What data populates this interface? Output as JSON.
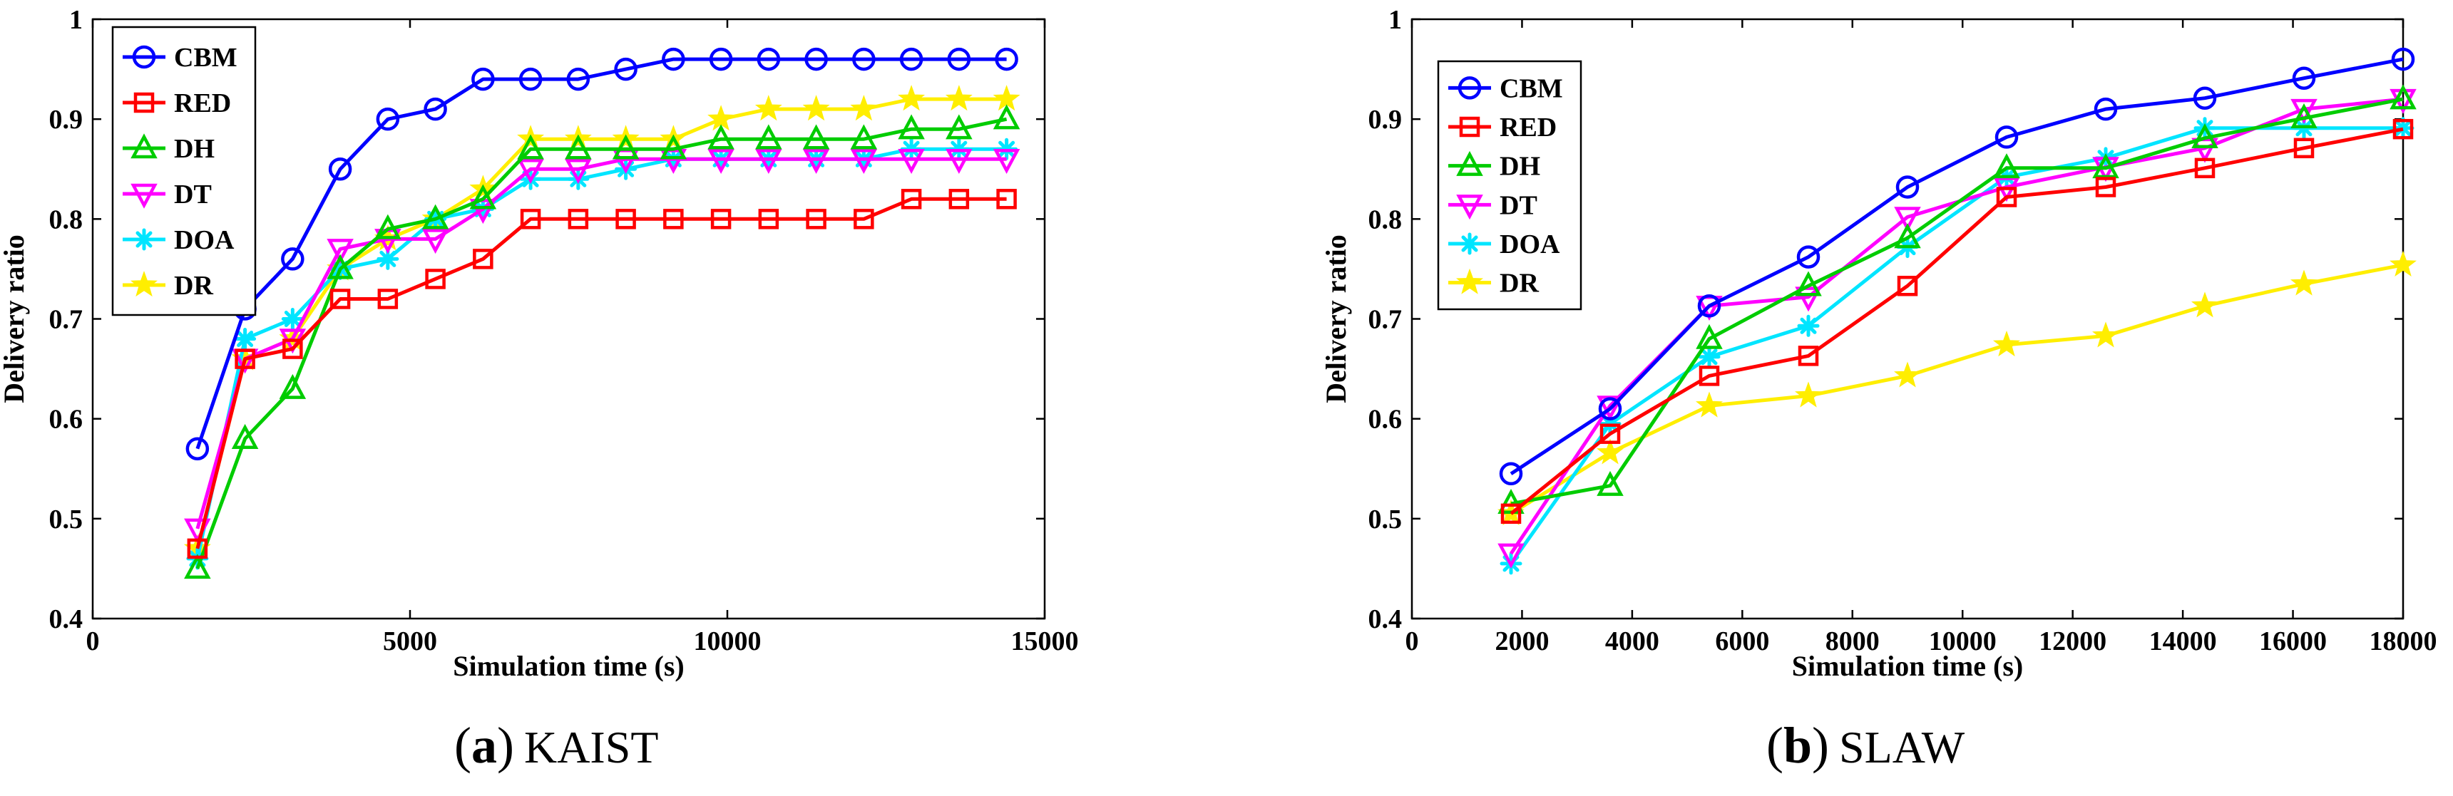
{
  "chart_data": [
    {
      "type": "line",
      "caption_letter": "a",
      "caption_text": "KAIST",
      "xlabel": "Simulation time (s)",
      "ylabel": "Delivery ratio",
      "xlim": [
        0,
        15000
      ],
      "ylim": [
        0.4,
        1.0
      ],
      "xticks": [
        0,
        5000,
        10000,
        15000
      ],
      "xtick_labels": [
        "0",
        "5000",
        "10000",
        "15000"
      ],
      "yticks": [
        0.4,
        0.5,
        0.6,
        0.7,
        0.8,
        0.9,
        1.0
      ],
      "ytick_labels": [
        "0.4",
        "0.5",
        "0.6",
        "0.7",
        "0.8",
        "0.9",
        "1"
      ],
      "legend_position": "top-left",
      "x": [
        1650,
        2400,
        3150,
        3900,
        4650,
        5400,
        6150,
        6900,
        7650,
        8400,
        9150,
        9900,
        10650,
        11400,
        12150,
        12900,
        13650,
        14400
      ],
      "series": [
        {
          "name": "CBM",
          "color": "#0000ff",
          "marker": "circle",
          "values": [
            0.57,
            0.71,
            0.76,
            0.85,
            0.9,
            0.91,
            0.94,
            0.94,
            0.94,
            0.95,
            0.96,
            0.96,
            0.96,
            0.96,
            0.96,
            0.96,
            0.96,
            0.96
          ]
        },
        {
          "name": "RED",
          "color": "#ff0000",
          "marker": "square",
          "values": [
            0.47,
            0.66,
            0.67,
            0.72,
            0.72,
            0.74,
            0.76,
            0.8,
            0.8,
            0.8,
            0.8,
            0.8,
            0.8,
            0.8,
            0.8,
            0.82,
            0.82,
            0.82
          ]
        },
        {
          "name": "DH",
          "color": "#00cc00",
          "marker": "triangle-up",
          "values": [
            0.45,
            0.58,
            0.63,
            0.75,
            0.79,
            0.8,
            0.82,
            0.87,
            0.87,
            0.87,
            0.87,
            0.88,
            0.88,
            0.88,
            0.88,
            0.89,
            0.89,
            0.9
          ]
        },
        {
          "name": "DT",
          "color": "#ff00ff",
          "marker": "triangle-down",
          "values": [
            0.49,
            0.66,
            0.68,
            0.77,
            0.78,
            0.78,
            0.81,
            0.85,
            0.85,
            0.86,
            0.86,
            0.86,
            0.86,
            0.86,
            0.86,
            0.86,
            0.86,
            0.86
          ]
        },
        {
          "name": "DOA",
          "color": "#00e5ff",
          "marker": "asterisk",
          "values": [
            0.46,
            0.68,
            0.7,
            0.75,
            0.76,
            0.8,
            0.81,
            0.84,
            0.84,
            0.85,
            0.86,
            0.86,
            0.86,
            0.86,
            0.86,
            0.87,
            0.87,
            0.87
          ]
        },
        {
          "name": "DR",
          "color": "#ffee00",
          "marker": "star",
          "values": [
            0.47,
            0.66,
            0.68,
            0.75,
            0.78,
            0.8,
            0.83,
            0.88,
            0.88,
            0.88,
            0.88,
            0.9,
            0.91,
            0.91,
            0.91,
            0.92,
            0.92,
            0.92
          ]
        }
      ]
    },
    {
      "type": "line",
      "caption_letter": "b",
      "caption_text": "SLAW",
      "xlabel": "Simulation time (s)",
      "ylabel": "Delivery ratio",
      "xlim": [
        0,
        18000
      ],
      "ylim": [
        0.4,
        1.0
      ],
      "xticks": [
        0,
        2000,
        4000,
        6000,
        8000,
        10000,
        12000,
        14000,
        16000,
        18000
      ],
      "xtick_labels": [
        "0",
        "2000",
        "4000",
        "6000",
        "8000",
        "10000",
        "12000",
        "14000",
        "16000",
        "18000"
      ],
      "yticks": [
        0.4,
        0.5,
        0.6,
        0.7,
        0.8,
        0.9,
        1.0
      ],
      "ytick_labels": [
        "0.4",
        "0.5",
        "0.6",
        "0.7",
        "0.8",
        "0.9",
        "1"
      ],
      "legend_position": "top-left",
      "x": [
        1800,
        3600,
        5400,
        7200,
        9000,
        10800,
        12600,
        14400,
        16200,
        18000
      ],
      "series": [
        {
          "name": "CBM",
          "color": "#0000ff",
          "marker": "circle",
          "values": [
            0.545,
            0.61,
            0.713,
            0.762,
            0.832,
            0.882,
            0.91,
            0.921,
            0.941,
            0.96
          ]
        },
        {
          "name": "RED",
          "color": "#ff0000",
          "marker": "square",
          "values": [
            0.505,
            0.585,
            0.643,
            0.663,
            0.733,
            0.822,
            0.832,
            0.851,
            0.871,
            0.89
          ]
        },
        {
          "name": "DH",
          "color": "#00cc00",
          "marker": "triangle-up",
          "values": [
            0.515,
            0.533,
            0.68,
            0.733,
            0.781,
            0.851,
            0.851,
            0.881,
            0.901,
            0.92
          ]
        },
        {
          "name": "DT",
          "color": "#ff00ff",
          "marker": "triangle-down",
          "values": [
            0.465,
            0.613,
            0.713,
            0.722,
            0.802,
            0.832,
            0.852,
            0.871,
            0.91,
            0.92
          ]
        },
        {
          "name": "DOA",
          "color": "#00e5ff",
          "marker": "asterisk",
          "values": [
            0.455,
            0.595,
            0.662,
            0.693,
            0.772,
            0.842,
            0.861,
            0.891,
            0.891,
            0.891
          ]
        },
        {
          "name": "DR",
          "color": "#ffee00",
          "marker": "star",
          "values": [
            0.505,
            0.566,
            0.613,
            0.623,
            0.643,
            0.674,
            0.683,
            0.713,
            0.735,
            0.754
          ]
        }
      ]
    }
  ]
}
